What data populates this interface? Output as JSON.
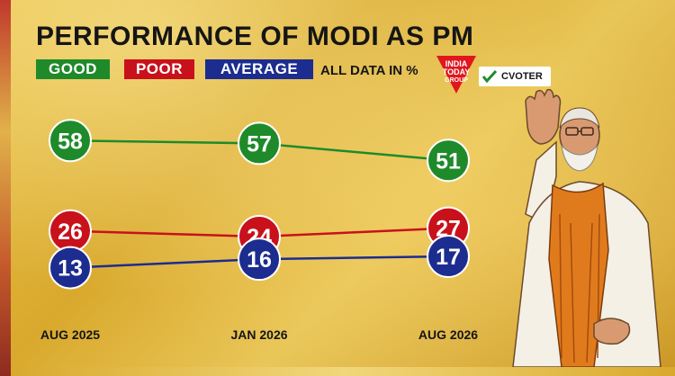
{
  "chart_data": {
    "type": "line",
    "title": "PERFORMANCE OF MODI AS PM",
    "subtitle": "ALL DATA IN %",
    "categories": [
      "AUG 2025",
      "JAN 2026",
      "AUG 2026"
    ],
    "series": [
      {
        "name": "GOOD",
        "values": [
          58,
          57,
          51
        ],
        "color": "#1f8a2a"
      },
      {
        "name": "POOR",
        "values": [
          26,
          24,
          27
        ],
        "color": "#c8111b"
      },
      {
        "name": "AVERAGE",
        "values": [
          13,
          16,
          17
        ],
        "color": "#1c2c8f"
      }
    ],
    "ylim": [
      10,
      60
    ],
    "grid": false,
    "legend": "top-left"
  },
  "logos": {
    "primary": "INDIA TODAY GROUP",
    "primary_lines": [
      "INDIA",
      "TODAY",
      "GROUP"
    ],
    "secondary": "CVOTER"
  },
  "colors": {
    "background": "#e1b23a",
    "good": "#1f8a2a",
    "poor": "#c8111b",
    "average": "#1c2c8f"
  }
}
